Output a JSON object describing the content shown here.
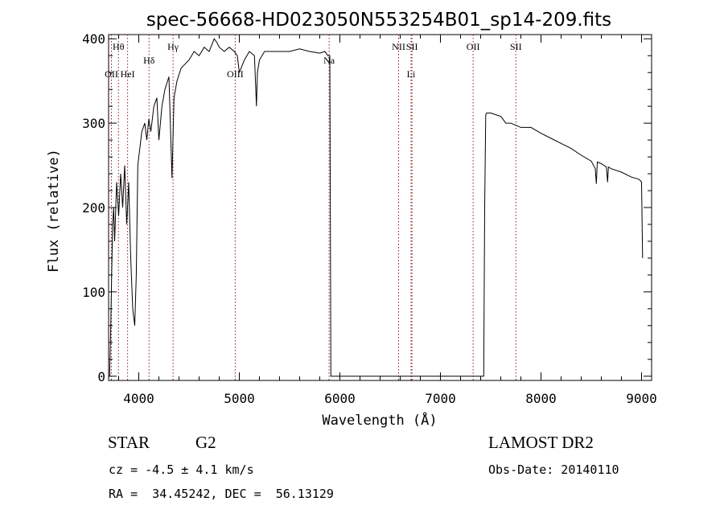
{
  "chart_data": {
    "type": "line",
    "title": "spec-56668-HD023050N553254B01_sp14-209.fits",
    "xlabel": "Wavelength (Å)",
    "ylabel": "Flux (relative)",
    "xlim": [
      3700,
      9100
    ],
    "ylim": [
      -5,
      405
    ],
    "x_ticks": [
      4000,
      5000,
      6000,
      7000,
      8000,
      9000
    ],
    "y_ticks": [
      0,
      100,
      200,
      300,
      400
    ],
    "grid": false,
    "line_color": "#000000",
    "marker_color": "#8b1a1a",
    "spectral_lines": [
      {
        "label": "OII",
        "x": 3728,
        "row": "low"
      },
      {
        "label": "Hθ",
        "x": 3798,
        "row": "top"
      },
      {
        "label": "HeI",
        "x": 3889,
        "row": "low"
      },
      {
        "label": "Hδ",
        "x": 4102,
        "row": "mid"
      },
      {
        "label": "Hγ",
        "x": 4341,
        "row": "top"
      },
      {
        "label": "OIII",
        "x": 4959,
        "row": "low"
      },
      {
        "label": "Na",
        "x": 5893,
        "row": "mid"
      },
      {
        "label": "NII",
        "x": 6584,
        "row": "top"
      },
      {
        "label": "Li",
        "x": 6708,
        "row": "low"
      },
      {
        "label": "SII",
        "x": 6717,
        "row": "top"
      },
      {
        "label": "OII",
        "x": 7325,
        "row": "top"
      },
      {
        "label": "SII",
        "x": 7750,
        "row": "top"
      }
    ],
    "series": [
      {
        "x": [
          3710,
          3720,
          3730,
          3740,
          3750,
          3760,
          3780,
          3800,
          3820,
          3840,
          3860,
          3880,
          3900,
          3920,
          3940,
          3960,
          3975,
          3990,
          4010,
          4030,
          4060,
          4080,
          4100,
          4120,
          4150,
          4180,
          4200,
          4230,
          4260,
          4300,
          4330,
          4350,
          4380,
          4420,
          4460,
          4500,
          4550,
          4600,
          4650,
          4700,
          4750,
          4780,
          4800,
          4850,
          4900,
          4950,
          4980,
          5000,
          5050,
          5100,
          5150,
          5170,
          5180,
          5200,
          5250,
          5300,
          5400,
          5500,
          5600,
          5700,
          5800,
          5850,
          5880,
          5893,
          5900,
          5910,
          5920,
          5930,
          6000,
          6500,
          7000,
          7200,
          7300,
          7400,
          7430,
          7440,
          7450,
          7460,
          7500,
          7550,
          7600,
          7620,
          7650,
          7700,
          7800,
          7900,
          8000,
          8100,
          8200,
          8300,
          8400,
          8500,
          8540,
          8550,
          8560,
          8600,
          8650,
          8662,
          8670,
          8700,
          8800,
          8900,
          8960,
          8980,
          9000,
          9010
        ],
        "y": [
          0,
          50,
          120,
          180,
          200,
          160,
          230,
          190,
          240,
          200,
          250,
          180,
          230,
          140,
          80,
          60,
          120,
          250,
          270,
          290,
          300,
          280,
          305,
          290,
          320,
          330,
          280,
          320,
          340,
          355,
          235,
          330,
          350,
          365,
          370,
          375,
          385,
          380,
          390,
          385,
          400,
          395,
          390,
          385,
          390,
          385,
          380,
          360,
          375,
          385,
          380,
          320,
          360,
          375,
          385,
          385,
          385,
          385,
          388,
          385,
          383,
          385,
          380,
          380,
          380,
          0,
          0,
          0,
          0,
          0,
          0,
          0,
          0,
          0,
          0,
          200,
          310,
          312,
          312,
          310,
          308,
          305,
          300,
          300,
          295,
          295,
          288,
          282,
          276,
          270,
          262,
          255,
          246,
          228,
          254,
          252,
          248,
          230,
          248,
          246,
          242,
          236,
          234,
          233,
          230,
          140
        ]
      }
    ]
  },
  "info": {
    "object_class": "STAR",
    "subclass": "G2",
    "survey": "LAMOST DR2",
    "cz": "cz = -4.5 ± 4.1 km/s",
    "obs_date": "Obs-Date: 20140110",
    "coords": "RA =  34.45242, DEC =  56.13129"
  }
}
